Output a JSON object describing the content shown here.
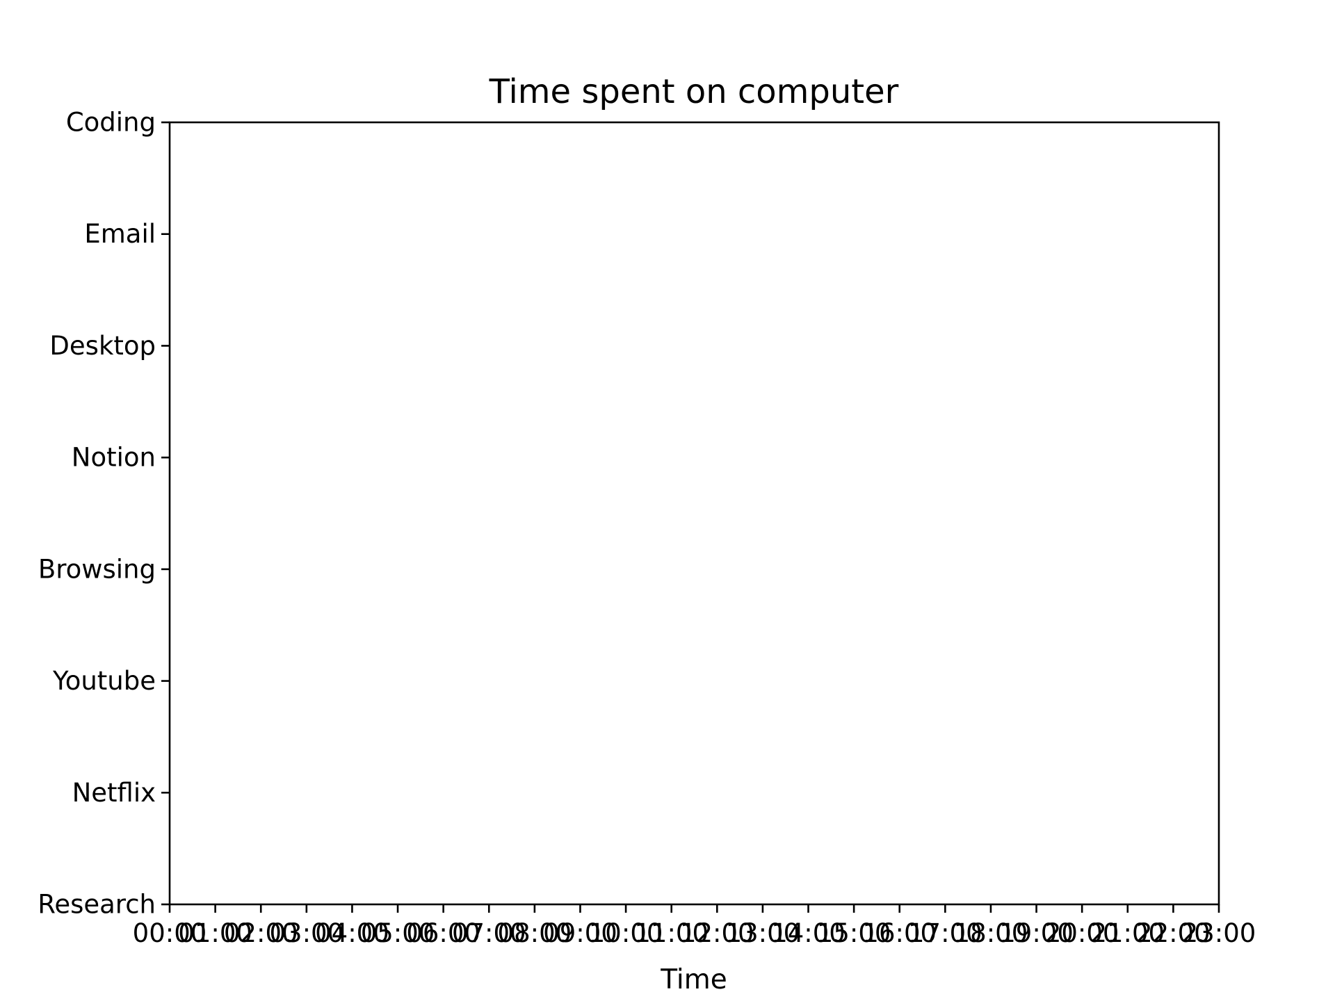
{
  "chart_data": {
    "type": "scatter",
    "title": "Time spent on computer",
    "xlabel": "Time",
    "ylabel": "",
    "x_ticks": [
      "00:00",
      "01:00",
      "02:00",
      "03:00",
      "04:00",
      "05:00",
      "06:00",
      "07:00",
      "08:00",
      "09:00",
      "10:00",
      "11:00",
      "12:00",
      "13:00",
      "14:00",
      "15:00",
      "16:00",
      "17:00",
      "18:00",
      "19:00",
      "20:00",
      "21:00",
      "22:00",
      "23:00"
    ],
    "xlim": [
      "00:00",
      "23:00"
    ],
    "categories": [
      "Coding",
      "Email",
      "Desktop",
      "Notion",
      "Browsing",
      "Youtube",
      "Netflix",
      "Research"
    ],
    "series": [],
    "grid": false,
    "legend": "none",
    "colors": {
      "axis": "#000000",
      "background": "#ffffff"
    }
  }
}
